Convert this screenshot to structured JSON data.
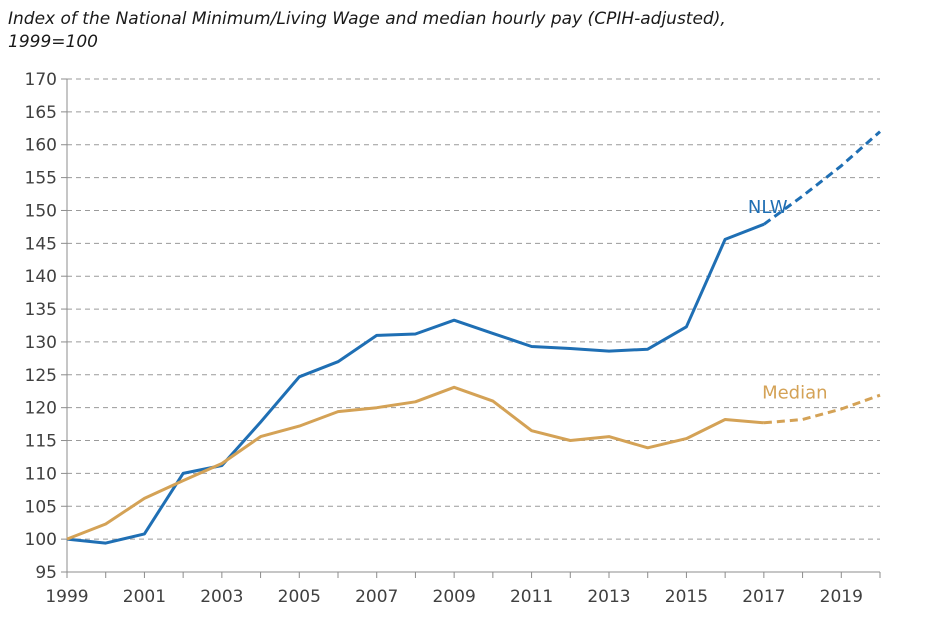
{
  "chart_data": {
    "type": "line",
    "title_line1": "Index of the National Minimum/Living Wage and median hourly pay (CPIH-adjusted),",
    "title_line2": "1999=100",
    "xlabel": "",
    "ylabel": "",
    "xlim": [
      1999,
      2020
    ],
    "ylim": [
      95,
      170
    ],
    "ytick_step": 5,
    "xticks": [
      "1999",
      "2001",
      "2003",
      "2005",
      "2007",
      "2009",
      "2011",
      "2013",
      "2015",
      "2017",
      "2019"
    ],
    "yticks": [
      "95",
      "100",
      "105",
      "110",
      "115",
      "120",
      "125",
      "130",
      "135",
      "140",
      "145",
      "150",
      "155",
      "160",
      "165",
      "170"
    ],
    "grid": "horizontal dashed",
    "series": [
      {
        "name": "NLW",
        "color": "#1f6fb4",
        "x": [
          1999,
          2000,
          2001,
          2002,
          2003,
          2004,
          2005,
          2006,
          2007,
          2008,
          2009,
          2010,
          2011,
          2012,
          2013,
          2014,
          2015,
          2016,
          2017,
          2018,
          2019,
          2020
        ],
        "values": [
          100,
          99.4,
          100.8,
          110,
          111.2,
          117.8,
          124.7,
          127,
          131,
          131.2,
          133.3,
          131.3,
          129.3,
          129,
          128.6,
          128.9,
          132.3,
          145.6,
          147.9,
          152.2,
          156.8,
          162
        ],
        "projection_from": 2017
      },
      {
        "name": "Median",
        "color": "#d4a256",
        "x": [
          1999,
          2000,
          2001,
          2002,
          2003,
          2004,
          2005,
          2006,
          2007,
          2008,
          2009,
          2010,
          2011,
          2012,
          2013,
          2014,
          2015,
          2016,
          2017,
          2018,
          2019,
          2020
        ],
        "values": [
          100,
          102.3,
          106.2,
          108.9,
          111.5,
          115.6,
          117.2,
          119.4,
          120,
          120.9,
          123.1,
          121,
          116.5,
          115,
          115.6,
          113.9,
          115.3,
          118.2,
          117.7,
          118.2,
          119.8,
          121.9
        ],
        "projection_from": 2017
      }
    ]
  }
}
